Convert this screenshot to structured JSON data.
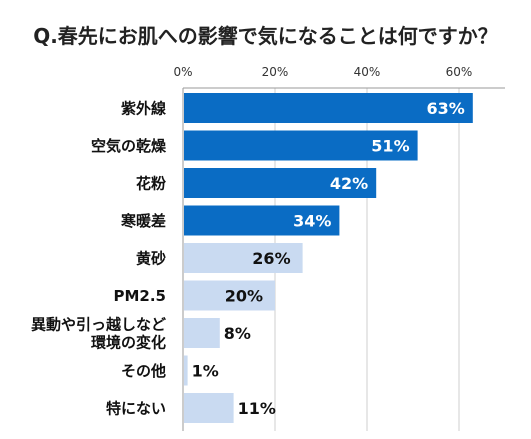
{
  "chart_data": {
    "type": "bar",
    "orientation": "horizontal",
    "title": "Q.春先にお肌への影響で気になることは何ですか？",
    "categories": [
      [
        "紫外線"
      ],
      [
        "空気の乾燥"
      ],
      [
        "花粉"
      ],
      [
        "寒暖差"
      ],
      [
        "黄砂"
      ],
      [
        "PM2.5"
      ],
      [
        "異動や引っ越しなど",
        "環境の変化"
      ],
      [
        "その他"
      ],
      [
        "特にない"
      ]
    ],
    "values": [
      63,
      51,
      42,
      34,
      26,
      20,
      8,
      1,
      11
    ],
    "data_labels": [
      "63%",
      "51%",
      "42%",
      "34%",
      "26%",
      "20%",
      "8%",
      "1%",
      "11%"
    ],
    "xlim": [
      0,
      70
    ],
    "ticks": [
      0,
      20,
      40,
      60
    ],
    "tick_labels": [
      "0%",
      "20%",
      "40%",
      "60%"
    ],
    "axis_position": "top",
    "grid": true,
    "colors": {
      "highlight_bar": "#0a6cc4",
      "other_bar": "#c9daf1",
      "highlight_label": "#ffffff",
      "other_label": "#111111",
      "grid": "#cfcfcf",
      "axis": "#9a9a9a"
    },
    "highlighted_count": 4
  }
}
